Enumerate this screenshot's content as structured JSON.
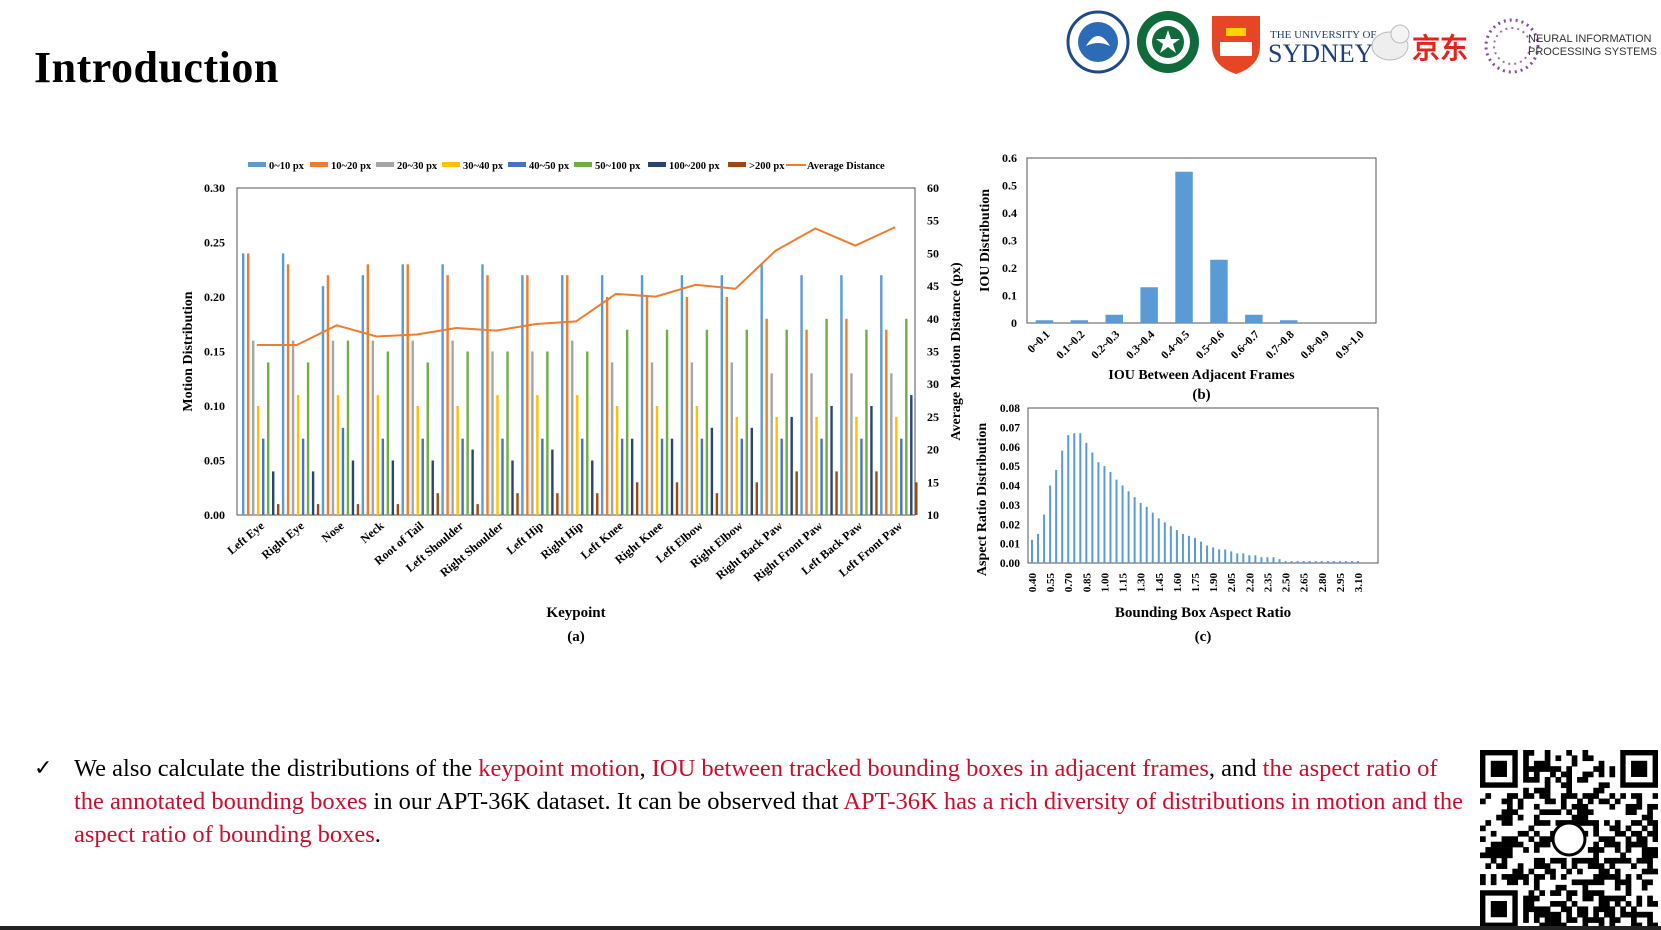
{
  "slide": {
    "title": "Introduction",
    "logos": {
      "sydney_line1": "THE UNIVERSITY OF",
      "sydney_line2": "SYDNEY",
      "jd": "京东",
      "neurips_line1": "NEURAL INFORMATION",
      "neurips_line2": "PROCESSING SYSTEMS"
    },
    "bullet": {
      "check": "✓",
      "segments": [
        {
          "text": "We also calculate the distributions of the ",
          "highlight": false
        },
        {
          "text": "keypoint motion",
          "highlight": true
        },
        {
          "text": ", ",
          "highlight": false
        },
        {
          "text": "IOU between tracked bounding boxes in adjacent frames",
          "highlight": true
        },
        {
          "text": ", and ",
          "highlight": false
        },
        {
          "text": "the aspect ratio of the annotated bounding boxes",
          "highlight": true
        },
        {
          "text": " in our APT-36K dataset. It can be observed that ",
          "highlight": false
        },
        {
          "text": "APT-36K has a rich diversity of distributions in motion and the aspect ratio of bounding boxes",
          "highlight": true
        },
        {
          "text": ".",
          "highlight": false
        }
      ]
    },
    "colors": {
      "highlight": "#c8102e"
    }
  },
  "chart_data": [
    {
      "id": "a",
      "type": "bar",
      "caption": "(a)",
      "xlabel": "Keypoint",
      "ylabel": "Motion Distribution",
      "y2label": "Average Motion Distance (px)",
      "ylim": [
        0,
        0.3
      ],
      "y2lim": [
        10,
        60
      ],
      "yticks": [
        "0.00",
        "0.05",
        "0.10",
        "0.15",
        "0.20",
        "0.25",
        "0.30"
      ],
      "y2ticks": [
        "10",
        "15",
        "20",
        "25",
        "30",
        "35",
        "40",
        "45",
        "50",
        "55",
        "60"
      ],
      "grid": false,
      "legend_position": "top",
      "categories": [
        "Left Eye",
        "Right Eye",
        "Nose",
        "Neck",
        "Root of Tail",
        "Left Shoulder",
        "Right Shoulder",
        "Left Hip",
        "Right Hip",
        "Left Knee",
        "Right Knee",
        "Left Elbow",
        "Right Elbow",
        "Right Back Paw",
        "Right Front Paw",
        "Left Back Paw",
        "Left Front Paw"
      ],
      "series": [
        {
          "name": "0~10 px",
          "color": "#5b9bd5",
          "values": [
            0.24,
            0.24,
            0.21,
            0.22,
            0.23,
            0.23,
            0.23,
            0.22,
            0.22,
            0.22,
            0.22,
            0.22,
            0.22,
            0.23,
            0.22,
            0.22,
            0.22
          ]
        },
        {
          "name": "10~20 px",
          "color": "#ed7d31",
          "values": [
            0.24,
            0.23,
            0.22,
            0.23,
            0.23,
            0.22,
            0.22,
            0.22,
            0.22,
            0.2,
            0.2,
            0.2,
            0.2,
            0.18,
            0.17,
            0.18,
            0.17
          ]
        },
        {
          "name": "20~30 px",
          "color": "#a5a5a5",
          "values": [
            0.16,
            0.16,
            0.16,
            0.16,
            0.16,
            0.16,
            0.15,
            0.15,
            0.16,
            0.14,
            0.14,
            0.14,
            0.14,
            0.13,
            0.13,
            0.13,
            0.13
          ]
        },
        {
          "name": "30~40 px",
          "color": "#ffc000",
          "values": [
            0.1,
            0.11,
            0.11,
            0.11,
            0.1,
            0.1,
            0.11,
            0.11,
            0.11,
            0.1,
            0.1,
            0.1,
            0.09,
            0.09,
            0.09,
            0.09,
            0.09
          ]
        },
        {
          "name": "40~50 px",
          "color": "#4472c4",
          "values": [
            0.07,
            0.07,
            0.08,
            0.07,
            0.07,
            0.07,
            0.07,
            0.07,
            0.07,
            0.07,
            0.07,
            0.07,
            0.07,
            0.07,
            0.07,
            0.07,
            0.07
          ]
        },
        {
          "name": "50~100 px",
          "color": "#70ad47",
          "values": [
            0.14,
            0.14,
            0.16,
            0.15,
            0.14,
            0.15,
            0.15,
            0.15,
            0.15,
            0.17,
            0.17,
            0.17,
            0.17,
            0.17,
            0.18,
            0.17,
            0.18
          ]
        },
        {
          "name": "100~200 px",
          "color": "#264478",
          "values": [
            0.04,
            0.04,
            0.05,
            0.05,
            0.05,
            0.06,
            0.05,
            0.06,
            0.05,
            0.07,
            0.07,
            0.08,
            0.08,
            0.09,
            0.1,
            0.1,
            0.11
          ]
        },
        {
          "name": ">200 px",
          "color": "#9e480e",
          "values": [
            0.01,
            0.01,
            0.01,
            0.01,
            0.02,
            0.01,
            0.02,
            0.02,
            0.02,
            0.03,
            0.03,
            0.02,
            0.03,
            0.04,
            0.04,
            0.04,
            0.03
          ]
        }
      ],
      "line": {
        "name": "Average Distance",
        "color": "#ed7d31",
        "axis": "y2",
        "values": [
          36,
          36,
          39,
          37.3,
          37.6,
          38.6,
          38.2,
          39.2,
          39.6,
          43.8,
          43.4,
          45.2,
          44.6,
          50.4,
          53.8,
          51.2,
          54
        ]
      }
    },
    {
      "id": "b",
      "type": "bar",
      "caption": "(b)",
      "xlabel": "IOU Between Adjacent Frames",
      "ylabel": "IOU Distribution",
      "ylim": [
        0,
        0.6
      ],
      "yticks": [
        "0",
        "0.1",
        "0.2",
        "0.3",
        "0.4",
        "0.5",
        "0.6"
      ],
      "grid": false,
      "categories": [
        "0~0.1",
        "0.1~0.2",
        "0.2~0.3",
        "0.3~0.4",
        "0.4~0.5",
        "0.5~0.6",
        "0.6~0.7",
        "0.7~0.8",
        "0.8~0.9",
        "0.9~1.0"
      ],
      "values": [
        0.01,
        0.01,
        0.03,
        0.13,
        0.55,
        0.23,
        0.03,
        0.01,
        0.0,
        0.0
      ],
      "color": "#5b9bd5"
    },
    {
      "id": "c",
      "type": "bar",
      "caption": "(c)",
      "xlabel": "Bounding Box Aspect Ratio",
      "ylabel": "Aspect Ratio Distribution",
      "ylim": [
        0,
        0.08
      ],
      "yticks": [
        "0.00",
        "0.01",
        "0.02",
        "0.03",
        "0.04",
        "0.05",
        "0.06",
        "0.07",
        "0.08"
      ],
      "grid": false,
      "color": "#5b9bd5",
      "xticks": [
        "0.40",
        "0.55",
        "0.70",
        "0.85",
        "1.00",
        "1.15",
        "1.30",
        "1.45",
        "1.60",
        "1.75",
        "1.90",
        "2.05",
        "2.20",
        "2.35",
        "2.50",
        "2.65",
        "2.80",
        "2.95",
        "3.10"
      ],
      "x": [
        0.4,
        0.45,
        0.5,
        0.55,
        0.6,
        0.65,
        0.7,
        0.75,
        0.8,
        0.85,
        0.9,
        0.95,
        1.0,
        1.05,
        1.1,
        1.15,
        1.2,
        1.25,
        1.3,
        1.35,
        1.4,
        1.45,
        1.5,
        1.55,
        1.6,
        1.65,
        1.7,
        1.75,
        1.8,
        1.85,
        1.9,
        1.95,
        2.0,
        2.05,
        2.1,
        2.15,
        2.2,
        2.25,
        2.3,
        2.35,
        2.4,
        2.45,
        2.5,
        2.55,
        2.6,
        2.65,
        2.7,
        2.75,
        2.8,
        2.85,
        2.9,
        2.95,
        3.0,
        3.05,
        3.1
      ],
      "values": [
        0.012,
        0.015,
        0.025,
        0.04,
        0.048,
        0.058,
        0.066,
        0.067,
        0.067,
        0.062,
        0.057,
        0.052,
        0.05,
        0.047,
        0.043,
        0.04,
        0.037,
        0.034,
        0.031,
        0.029,
        0.026,
        0.023,
        0.021,
        0.019,
        0.017,
        0.015,
        0.014,
        0.013,
        0.011,
        0.009,
        0.008,
        0.007,
        0.007,
        0.006,
        0.005,
        0.005,
        0.004,
        0.004,
        0.003,
        0.003,
        0.003,
        0.002,
        0.001,
        0.001,
        0.001,
        0.001,
        0.001,
        0.001,
        0.001,
        0.001,
        0.001,
        0.001,
        0.001,
        0.001,
        0.001
      ]
    }
  ]
}
